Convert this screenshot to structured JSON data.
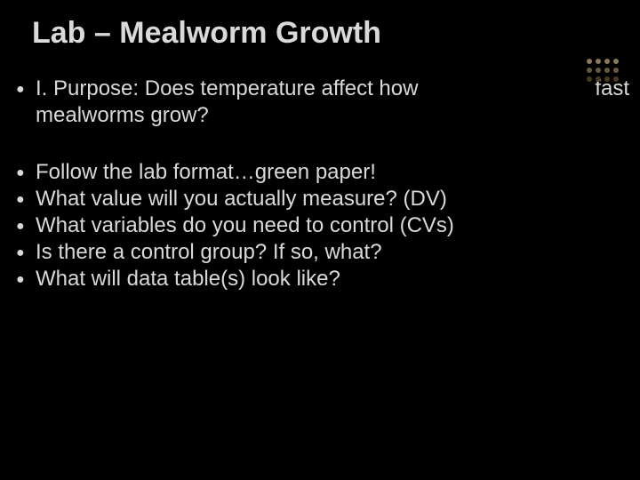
{
  "colors": {
    "background": "#000000",
    "text": "#d9d9d9",
    "deco_dots": [
      "#8a7a5c",
      "#8a7a5c",
      "#8a7a5c",
      "#8a7a5c",
      "#6a5a3c",
      "#6a5a3c",
      "#6a5a3c",
      "#6a5a3c",
      "#4a3a1c",
      "#4a3a1c",
      "#4a3a1c",
      "#4a3a1c"
    ]
  },
  "slide": {
    "title": "Lab – Mealworm Growth",
    "purpose_left": "I.  Purpose: Does temperature affect how mealworms grow?",
    "purpose_right": "fast",
    "bullets": [
      "Follow the lab format…green paper!",
      "What value will you actually measure? (DV)",
      "What variables do you need to control (CVs)",
      "Is there a control group? If so, what?",
      "What will data table(s) look like?"
    ]
  },
  "typography": {
    "title_fontsize": 34,
    "body_fontsize": 24
  }
}
